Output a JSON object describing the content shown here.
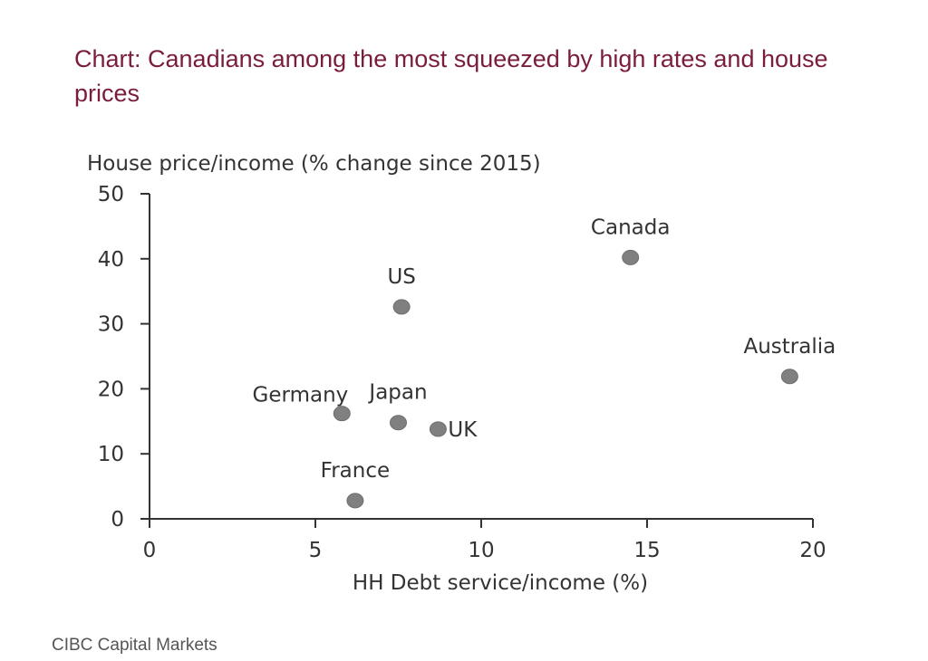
{
  "title": "Chart: Canadians among the most squeezed by high rates and house prices",
  "source": "CIBC Capital Markets",
  "chart_data": {
    "type": "scatter",
    "title": "Chart: Canadians among the most squeezed by high rates and house prices",
    "xlabel": "HH Debt service/income (%)",
    "ylabel": "House price/income (% change since 2015)",
    "xlim": [
      0,
      20
    ],
    "ylim": [
      0,
      50
    ],
    "xticks": [
      0,
      5,
      10,
      15,
      20
    ],
    "yticks": [
      0,
      10,
      20,
      30,
      40,
      50
    ],
    "grid": false,
    "marker_color": "#808080",
    "points": [
      {
        "label": "Canada",
        "x": 14.5,
        "y": 40.2,
        "label_pos": "above"
      },
      {
        "label": "US",
        "x": 7.6,
        "y": 32.6,
        "label_pos": "above"
      },
      {
        "label": "Australia",
        "x": 19.3,
        "y": 21.9,
        "label_pos": "above"
      },
      {
        "label": "Germany",
        "x": 5.8,
        "y": 16.2,
        "label_pos": "above-left"
      },
      {
        "label": "Japan",
        "x": 7.5,
        "y": 14.8,
        "label_pos": "above"
      },
      {
        "label": "UK",
        "x": 8.7,
        "y": 13.8,
        "label_pos": "right"
      },
      {
        "label": "France",
        "x": 6.2,
        "y": 2.8,
        "label_pos": "above"
      }
    ]
  }
}
